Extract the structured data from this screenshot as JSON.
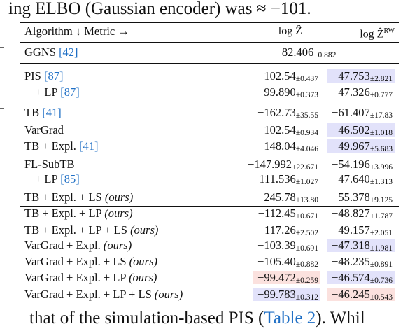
{
  "intro_text": "ing ELBO (Gaussian encoder) was ≈ −101.",
  "outro_text": "that of the simulation-based PIS (",
  "outro_ref": "Table 2",
  "outro_tail": "). Whil",
  "table": {
    "header": {
      "algorithm_metric": "Algorithm ↓ Metric →",
      "col1": "log Ẑ",
      "col2": "log Ẑ",
      "col2_sup": "RW"
    },
    "rows": [
      {
        "alg": "GGNS ",
        "ref": "[42]",
        "suffix": "",
        "span": "−82.406",
        "span_pm": "±0.882"
      },
      {
        "alg": "PIS ",
        "ref": "[87]",
        "suffix": "",
        "v1": "−102.54",
        "p1": "±0.437",
        "v2": "−47.753",
        "p2": "±2.821",
        "h2": "blue"
      },
      {
        "alg": "+ LP ",
        "ref": "[87]",
        "suffix": "",
        "v1": "−99.890",
        "p1": "±0.373",
        "v2": "−47.326",
        "p2": "±0.777"
      },
      {
        "alg": "TB ",
        "ref": "[41]",
        "suffix": "",
        "v1": "−162.73",
        "p1": "±35.55",
        "v2": "−61.407",
        "p2": "±17.83"
      },
      {
        "alg": "VarGrad",
        "ref": "",
        "suffix": "",
        "v1": "−102.54",
        "p1": "±0.934",
        "v2": "−46.502",
        "p2": "±1.018",
        "h2": "blue"
      },
      {
        "alg": "TB + Expl. ",
        "ref": "[41]",
        "suffix": "",
        "v1": "−148.04",
        "p1": "±4.046",
        "v2": "−49.967",
        "p2": "±5.683",
        "h2": "blue"
      },
      {
        "alg": "FL-SubTB",
        "ref": "",
        "suffix": "",
        "v1": "−147.992",
        "p1": "±22.671",
        "v2": "−54.196",
        "p2": "±3.996"
      },
      {
        "alg": "+ LP ",
        "ref": "[85]",
        "suffix": "",
        "v1": "−111.536",
        "p1": "±1.027",
        "v2": "−47.640",
        "p2": "±1.313"
      },
      {
        "alg": "TB + Expl. + LS ",
        "ref": "",
        "suffix": "(ours)",
        "v1": "−245.78",
        "p1": "±13.80",
        "v2": "−55.378",
        "p2": "±9.125"
      },
      {
        "alg": "TB + Expl. + LP ",
        "ref": "",
        "suffix": "(ours)",
        "v1": "−112.45",
        "p1": "±0.671",
        "v2": "−48.827",
        "p2": "±1.787"
      },
      {
        "alg": "TB + Expl. + LP + LS ",
        "ref": "",
        "suffix": "(ours)",
        "v1": "−117.26",
        "p1": "±2.502",
        "v2": "−49.157",
        "p2": "±2.051"
      },
      {
        "alg": "VarGrad + Expl. ",
        "ref": "",
        "suffix": "(ours)",
        "v1": "−103.39",
        "p1": "±0.691",
        "v2": "−47.318",
        "p2": "±1.981",
        "h2": "blue"
      },
      {
        "alg": "VarGrad + Expl. + LS ",
        "ref": "",
        "suffix": "(ours)",
        "v1": "−105.40",
        "p1": "±0.882",
        "v2": "−48.235",
        "p2": "±0.891"
      },
      {
        "alg": "VarGrad + Expl. + LP ",
        "ref": "",
        "suffix": "(ours)",
        "v1": "−99.472",
        "p1": "±0.259",
        "v2": "−46.574",
        "p2": "±0.736",
        "h1": "red",
        "h2": "blue"
      },
      {
        "alg": "VarGrad + Expl. + LP + LS ",
        "ref": "",
        "suffix": "(ours)",
        "v1": "−99.783",
        "p1": "±0.312",
        "v2": "−46.245",
        "p2": "±0.543",
        "h1": "blue",
        "h2": "red"
      }
    ]
  }
}
